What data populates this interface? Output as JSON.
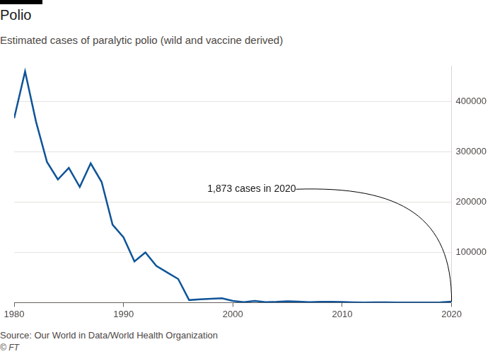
{
  "chart_data": {
    "type": "line",
    "title": "Polio",
    "subtitle": "Estimated cases of paralytic polio (wild and vaccine derived)",
    "source": "Source: Our World in Data/World Health Organization",
    "credit": "© FT",
    "x": [
      1980,
      1981,
      1982,
      1983,
      1984,
      1985,
      1986,
      1987,
      1988,
      1989,
      1990,
      1991,
      1992,
      1993,
      1994,
      1995,
      1996,
      1997,
      1998,
      1999,
      2000,
      2001,
      2002,
      2003,
      2004,
      2005,
      2006,
      2007,
      2008,
      2009,
      2010,
      2011,
      2012,
      2013,
      2014,
      2015,
      2016,
      2017,
      2018,
      2019,
      2020
    ],
    "values": [
      367000,
      460000,
      360000,
      280000,
      245000,
      268000,
      230000,
      277000,
      240000,
      155000,
      130000,
      82000,
      100000,
      73000,
      60000,
      47000,
      5000,
      6500,
      7500,
      8500,
      3500,
      1000,
      3500,
      1000,
      1500,
      2500,
      2000,
      1000,
      1700,
      1700,
      1200,
      700,
      250,
      500,
      400,
      100,
      80,
      120,
      150,
      600,
      1873
    ],
    "color": "#0f5499",
    "xlim": [
      1980,
      2020
    ],
    "xticks": [
      1980,
      1990,
      2000,
      2010,
      2020
    ],
    "ylim": [
      0,
      470000
    ],
    "yticks": [
      100000,
      200000,
      300000,
      400000
    ],
    "grid": true,
    "annotations": [
      {
        "text": "1,873 cases in 2020",
        "x": 2020,
        "y": 1873
      }
    ]
  }
}
